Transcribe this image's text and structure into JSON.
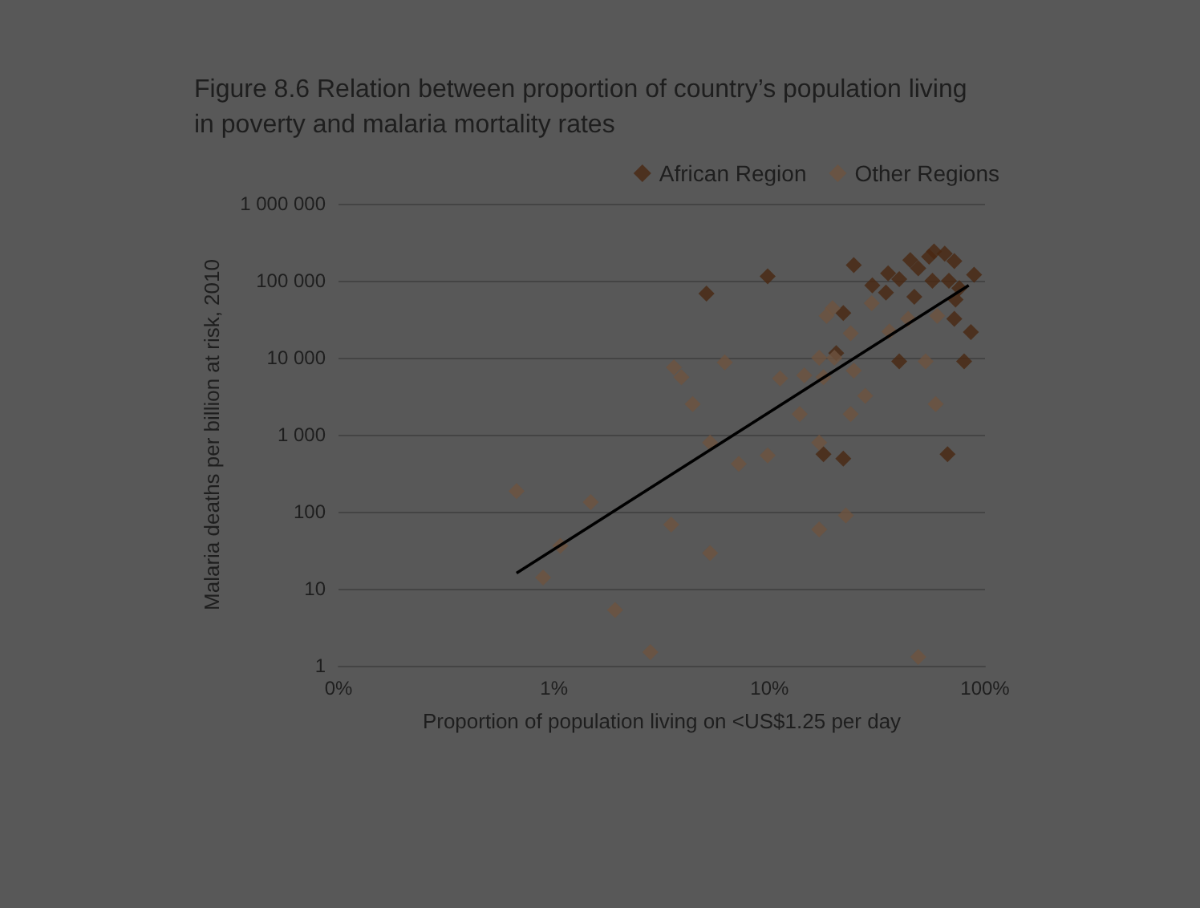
{
  "chart_data": {
    "type": "scatter",
    "title": "Figure 8.6 Relation between proportion of country’s population living in poverty and malaria mortality rates",
    "xlabel": "Proportion of population living on <US$1.25 per day",
    "ylabel": "Malaria deaths per billion at risk, 2010",
    "log": "xy",
    "grid": "y",
    "legend": "top right",
    "marker": "diamond",
    "xlim": [
      0.1,
      100
    ],
    "xticks": [
      {
        "value": 0.1,
        "label": "0%"
      },
      {
        "value": 1,
        "label": "1%"
      },
      {
        "value": 10,
        "label": "10%"
      },
      {
        "value": 100,
        "label": "100%"
      }
    ],
    "ylim": [
      1,
      1000000
    ],
    "yticks": [
      {
        "value": 1,
        "label": "1"
      },
      {
        "value": 10,
        "label": "10"
      },
      {
        "value": 100,
        "label": "100"
      },
      {
        "value": 1000,
        "label": "1 000"
      },
      {
        "value": 10000,
        "label": "10 000"
      },
      {
        "value": 100000,
        "label": "100 000"
      },
      {
        "value": 1000000,
        "label": "1 000 000"
      }
    ],
    "series": [
      {
        "name": "African Region",
        "color": "#4a2812",
        "x": [
          5.1,
          9.8,
          22,
          20.4,
          17.8,
          22,
          24.6,
          30,
          34.7,
          35.5,
          40,
          40,
          47,
          45,
          49,
          55,
          58,
          65,
          57,
          68,
          72,
          76,
          73,
          72,
          86,
          80,
          89,
          67
        ],
        "values": [
          68000,
          114000,
          38000,
          11500,
          560,
          490,
          160000,
          87000,
          70000,
          125000,
          105000,
          9000,
          62000,
          186000,
          145000,
          205000,
          240000,
          225000,
          100000,
          100000,
          180000,
          80000,
          57000,
          32000,
          21500,
          9000,
          120000,
          560
        ]
      },
      {
        "name": "Other Regions",
        "color": "#6e5440",
        "x": [
          0.67,
          0.89,
          1.07,
          1.48,
          1.92,
          2.8,
          3.5,
          3.6,
          3.9,
          4.4,
          5.3,
          5.3,
          6.2,
          7.2,
          9.8,
          11.2,
          13.8,
          14.5,
          17,
          17,
          17.8,
          19.6,
          18.4,
          20,
          23.8,
          23.8,
          24.6,
          27.8,
          29.8,
          36,
          44,
          53,
          59,
          60,
          49,
          17,
          22.6
        ],
        "values": [
          186,
          14,
          36,
          133,
          5.3,
          1.5,
          68,
          7500,
          5600,
          2500,
          790,
          29,
          8700,
          420,
          540,
          5400,
          1860,
          5900,
          790,
          10000,
          5600,
          44000,
          35000,
          10000,
          1860,
          20800,
          6800,
          3200,
          51000,
          22000,
          32000,
          9000,
          2500,
          35000,
          1.3,
          59,
          90
        ]
      },
      {
        "type": "line",
        "color": "#000000",
        "marker": "none",
        "x": [
          0.67,
          84
        ],
        "values": [
          16,
          87000
        ]
      }
    ]
  }
}
